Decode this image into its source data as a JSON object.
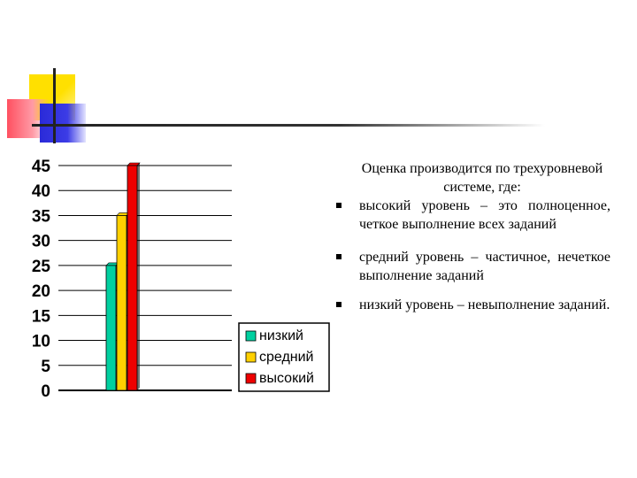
{
  "chart_data": {
    "type": "bar",
    "categories": [
      ""
    ],
    "series": [
      {
        "name": "низкий",
        "values": [
          25
        ],
        "color": "#00d0a0"
      },
      {
        "name": "средний",
        "values": [
          35
        ],
        "color": "#ffd000"
      },
      {
        "name": "высокий",
        "values": [
          45
        ],
        "color": "#ee0000"
      }
    ],
    "y_ticks": [
      "0",
      "5",
      "10",
      "15",
      "20",
      "25",
      "30",
      "35",
      "40",
      "45"
    ],
    "ylim": [
      0,
      45
    ],
    "title": "",
    "xlabel": "",
    "ylabel": "",
    "grid": true,
    "legend_position": "bottom-right"
  },
  "text": {
    "intro": "Оценка производится по трехуровневой системе, где:",
    "bullets": [
      "высокий уровень – это полноценное, четкое выполнение всех заданий",
      "средний уровень – частичное, нечеткое выполнение заданий",
      "низкий уровень – невыполнение заданий."
    ]
  }
}
